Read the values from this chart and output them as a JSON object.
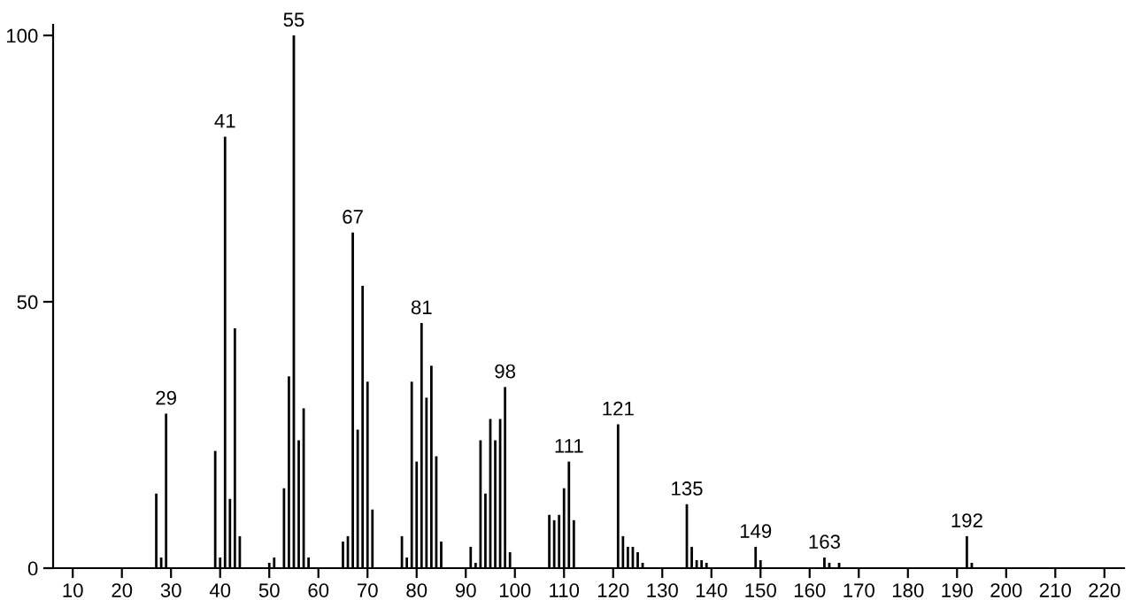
{
  "chart_data": {
    "type": "bar",
    "color": "#000000",
    "x": [
      27,
      28,
      29,
      39,
      40,
      41,
      42,
      43,
      44,
      50,
      51,
      53,
      54,
      55,
      56,
      57,
      58,
      65,
      66,
      67,
      68,
      69,
      70,
      71,
      77,
      78,
      79,
      80,
      81,
      82,
      83,
      84,
      85,
      91,
      92,
      93,
      94,
      95,
      96,
      97,
      98,
      99,
      107,
      108,
      109,
      110,
      111,
      112,
      121,
      122,
      123,
      124,
      125,
      126,
      135,
      136,
      137,
      138,
      139,
      149,
      150,
      163,
      164,
      166,
      192,
      193
    ],
    "values": [
      14,
      2,
      29,
      22,
      2,
      81,
      13,
      45,
      6,
      1,
      2,
      15,
      36,
      100,
      24,
      30,
      2,
      5,
      6,
      63,
      26,
      53,
      35,
      11,
      6,
      2,
      35,
      20,
      46,
      32,
      38,
      21,
      5,
      4,
      1,
      24,
      14,
      28,
      24,
      28,
      34,
      3,
      10,
      9,
      10,
      15,
      20,
      9,
      27,
      6,
      4,
      4,
      3,
      1,
      12,
      4,
      1.5,
      1.5,
      1,
      4,
      1.5,
      2,
      1,
      1,
      6,
      1
    ],
    "xlim": [
      6,
      224
    ],
    "ylim": [
      0,
      102
    ],
    "xticks": [
      10,
      20,
      30,
      40,
      50,
      60,
      70,
      80,
      90,
      100,
      110,
      120,
      130,
      140,
      150,
      160,
      170,
      180,
      190,
      200,
      210,
      220
    ],
    "yticks": [
      0,
      50,
      100
    ],
    "grid": false,
    "annotations": [
      {
        "text": "29",
        "x": 29,
        "y": 29
      },
      {
        "text": "41",
        "x": 41,
        "y": 81
      },
      {
        "text": "55",
        "x": 55,
        "y": 100
      },
      {
        "text": "67",
        "x": 67,
        "y": 63
      },
      {
        "text": "81",
        "x": 81,
        "y": 46
      },
      {
        "text": "98",
        "x": 98,
        "y": 34
      },
      {
        "text": "111",
        "x": 111,
        "y": 20
      },
      {
        "text": "121",
        "x": 121,
        "y": 27
      },
      {
        "text": "135",
        "x": 135,
        "y": 12
      },
      {
        "text": "149",
        "x": 149,
        "y": 4
      },
      {
        "text": "163",
        "x": 163,
        "y": 2
      },
      {
        "text": "192",
        "x": 192,
        "y": 6
      }
    ]
  }
}
